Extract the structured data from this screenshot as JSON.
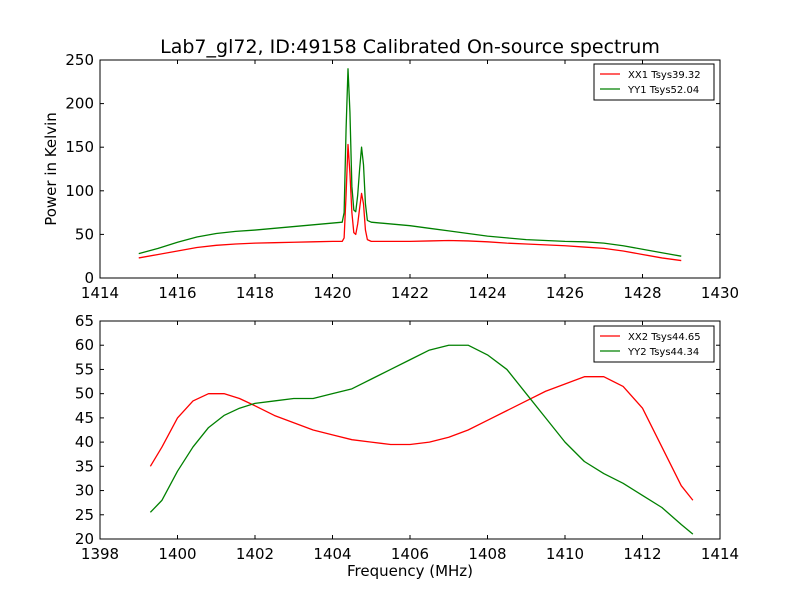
{
  "figure": {
    "title": "Lab7_gl72, ID:49158 Calibrated On-source spectrum"
  },
  "chart_data": [
    {
      "type": "line",
      "title": "Lab7_gl72, ID:49158 Calibrated On-source spectrum",
      "xlabel": "",
      "ylabel": "Power in Kelvin",
      "xlim": [
        1414,
        1430
      ],
      "ylim": [
        0,
        250
      ],
      "xticks": [
        1414,
        1416,
        1418,
        1420,
        1422,
        1424,
        1426,
        1428,
        1430
      ],
      "yticks": [
        0,
        50,
        100,
        150,
        200,
        250
      ],
      "grid": false,
      "legend": "top-right",
      "series": [
        {
          "name": "XX1 Tsys39.32",
          "color": "#ff0000",
          "points": [
            [
              1415.0,
              23
            ],
            [
              1415.5,
              27
            ],
            [
              1416.0,
              31
            ],
            [
              1416.5,
              35
            ],
            [
              1417.0,
              37.5
            ],
            [
              1417.5,
              39
            ],
            [
              1418.0,
              40
            ],
            [
              1418.5,
              40.5
            ],
            [
              1419.0,
              41
            ],
            [
              1419.5,
              41.5
            ],
            [
              1420.0,
              42
            ],
            [
              1420.25,
              42
            ],
            [
              1420.3,
              46
            ],
            [
              1420.35,
              95
            ],
            [
              1420.4,
              153
            ],
            [
              1420.45,
              120
            ],
            [
              1420.5,
              75
            ],
            [
              1420.55,
              52
            ],
            [
              1420.6,
              50
            ],
            [
              1420.65,
              62
            ],
            [
              1420.7,
              80
            ],
            [
              1420.75,
              97
            ],
            [
              1420.8,
              85
            ],
            [
              1420.85,
              55
            ],
            [
              1420.9,
              44
            ],
            [
              1421.0,
              42
            ],
            [
              1421.5,
              42
            ],
            [
              1422.0,
              42
            ],
            [
              1422.5,
              42.5
            ],
            [
              1423.0,
              43
            ],
            [
              1423.5,
              42.5
            ],
            [
              1424.0,
              41.5
            ],
            [
              1424.5,
              40
            ],
            [
              1425.0,
              39
            ],
            [
              1425.5,
              38
            ],
            [
              1426.0,
              37
            ],
            [
              1426.5,
              35.5
            ],
            [
              1427.0,
              34
            ],
            [
              1427.5,
              31
            ],
            [
              1428.0,
              27
            ],
            [
              1428.5,
              23
            ],
            [
              1429.0,
              20
            ]
          ]
        },
        {
          "name": "YY1 Tsys52.04",
          "color": "#008000",
          "points": [
            [
              1415.0,
              28
            ],
            [
              1415.5,
              34
            ],
            [
              1416.0,
              41
            ],
            [
              1416.5,
              47
            ],
            [
              1417.0,
              51
            ],
            [
              1417.5,
              53.5
            ],
            [
              1418.0,
              55
            ],
            [
              1418.5,
              57
            ],
            [
              1419.0,
              59
            ],
            [
              1419.5,
              61
            ],
            [
              1420.0,
              63
            ],
            [
              1420.25,
              64
            ],
            [
              1420.3,
              75
            ],
            [
              1420.35,
              170
            ],
            [
              1420.4,
              240
            ],
            [
              1420.45,
              190
            ],
            [
              1420.5,
              105
            ],
            [
              1420.55,
              78
            ],
            [
              1420.6,
              76
            ],
            [
              1420.65,
              95
            ],
            [
              1420.7,
              125
            ],
            [
              1420.75,
              150
            ],
            [
              1420.8,
              130
            ],
            [
              1420.85,
              85
            ],
            [
              1420.9,
              66
            ],
            [
              1421.0,
              64
            ],
            [
              1421.5,
              62
            ],
            [
              1422.0,
              60
            ],
            [
              1422.5,
              57
            ],
            [
              1423.0,
              54
            ],
            [
              1423.5,
              51
            ],
            [
              1424.0,
              48
            ],
            [
              1424.5,
              46
            ],
            [
              1425.0,
              44
            ],
            [
              1425.5,
              43
            ],
            [
              1426.0,
              42
            ],
            [
              1426.5,
              41.5
            ],
            [
              1427.0,
              40
            ],
            [
              1427.5,
              37
            ],
            [
              1428.0,
              33
            ],
            [
              1428.5,
              29
            ],
            [
              1429.0,
              25
            ]
          ]
        }
      ]
    },
    {
      "type": "line",
      "title": "",
      "xlabel": "Frequency (MHz)",
      "ylabel": "",
      "xlim": [
        1398,
        1414
      ],
      "ylim": [
        20,
        65
      ],
      "xticks": [
        1398,
        1400,
        1402,
        1404,
        1406,
        1408,
        1410,
        1412,
        1414
      ],
      "yticks": [
        20,
        25,
        30,
        35,
        40,
        45,
        50,
        55,
        60,
        65
      ],
      "grid": false,
      "legend": "top-right",
      "series": [
        {
          "name": "XX2 Tsys44.65",
          "color": "#ff0000",
          "points": [
            [
              1399.3,
              35
            ],
            [
              1399.6,
              39
            ],
            [
              1400.0,
              45
            ],
            [
              1400.4,
              48.5
            ],
            [
              1400.8,
              50
            ],
            [
              1401.2,
              50
            ],
            [
              1401.6,
              49
            ],
            [
              1402.0,
              47.5
            ],
            [
              1402.5,
              45.5
            ],
            [
              1403.0,
              44
            ],
            [
              1403.5,
              42.5
            ],
            [
              1404.0,
              41.5
            ],
            [
              1404.5,
              40.5
            ],
            [
              1405.0,
              40
            ],
            [
              1405.5,
              39.5
            ],
            [
              1406.0,
              39.5
            ],
            [
              1406.5,
              40
            ],
            [
              1407.0,
              41
            ],
            [
              1407.5,
              42.5
            ],
            [
              1408.0,
              44.5
            ],
            [
              1408.5,
              46.5
            ],
            [
              1409.0,
              48.5
            ],
            [
              1409.5,
              50.5
            ],
            [
              1410.0,
              52
            ],
            [
              1410.5,
              53.5
            ],
            [
              1411.0,
              53.5
            ],
            [
              1411.5,
              51.5
            ],
            [
              1412.0,
              47
            ],
            [
              1412.5,
              39
            ],
            [
              1413.0,
              31
            ],
            [
              1413.3,
              28
            ]
          ]
        },
        {
          "name": "YY2 Tsys44.34",
          "color": "#008000",
          "points": [
            [
              1399.3,
              25.5
            ],
            [
              1399.6,
              28
            ],
            [
              1400.0,
              34
            ],
            [
              1400.4,
              39
            ],
            [
              1400.8,
              43
            ],
            [
              1401.2,
              45.5
            ],
            [
              1401.6,
              47
            ],
            [
              1402.0,
              48
            ],
            [
              1402.5,
              48.5
            ],
            [
              1403.0,
              49
            ],
            [
              1403.5,
              49
            ],
            [
              1404.0,
              50
            ],
            [
              1404.5,
              51
            ],
            [
              1405.0,
              53
            ],
            [
              1405.5,
              55
            ],
            [
              1406.0,
              57
            ],
            [
              1406.5,
              59
            ],
            [
              1407.0,
              60
            ],
            [
              1407.5,
              60
            ],
            [
              1408.0,
              58
            ],
            [
              1408.5,
              55
            ],
            [
              1409.0,
              50
            ],
            [
              1409.5,
              45
            ],
            [
              1410.0,
              40
            ],
            [
              1410.5,
              36
            ],
            [
              1411.0,
              33.5
            ],
            [
              1411.5,
              31.5
            ],
            [
              1412.0,
              29
            ],
            [
              1412.5,
              26.5
            ],
            [
              1413.0,
              23
            ],
            [
              1413.3,
              21
            ]
          ]
        }
      ]
    }
  ]
}
